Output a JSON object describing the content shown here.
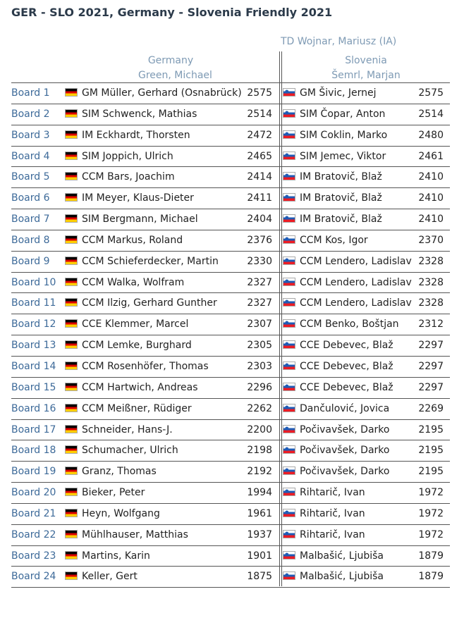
{
  "title": "GER - SLO 2021, Germany - Slovenia Friendly 2021",
  "arbiter": "TD Wojnar, Mariusz (IA)",
  "teams": {
    "left": {
      "name": "Germany",
      "captain": "Green, Michael",
      "flag": "germany-flag"
    },
    "right": {
      "name": "Slovenia",
      "captain": "Šemrl, Marjan",
      "flag": "slovenia-flag"
    }
  },
  "boards": [
    {
      "board": "Board 1",
      "left": "GM Müller, Gerhard (Osnabrück)",
      "left_rating": "2575",
      "right": "GM Šivic, Jernej",
      "right_rating": "2575"
    },
    {
      "board": "Board 2",
      "left": "SIM Schwenck, Mathias",
      "left_rating": "2514",
      "right": "SIM Čopar, Anton",
      "right_rating": "2514"
    },
    {
      "board": "Board 3",
      "left": "IM Eckhardt, Thorsten",
      "left_rating": "2472",
      "right": "SIM Coklin, Marko",
      "right_rating": "2480"
    },
    {
      "board": "Board 4",
      "left": "SIM Joppich, Ulrich",
      "left_rating": "2465",
      "right": "SIM Jemec, Viktor",
      "right_rating": "2461"
    },
    {
      "board": "Board 5",
      "left": "CCM Bars, Joachim",
      "left_rating": "2414",
      "right": "IM Bratovič, Blaž",
      "right_rating": "2410"
    },
    {
      "board": "Board 6",
      "left": "IM Meyer, Klaus-Dieter",
      "left_rating": "2411",
      "right": "IM Bratovič, Blaž",
      "right_rating": "2410"
    },
    {
      "board": "Board 7",
      "left": "SIM Bergmann, Michael",
      "left_rating": "2404",
      "right": "IM Bratovič, Blaž",
      "right_rating": "2410"
    },
    {
      "board": "Board 8",
      "left": "CCM Markus, Roland",
      "left_rating": "2376",
      "right": "CCM Kos, Igor",
      "right_rating": "2370"
    },
    {
      "board": "Board 9",
      "left": "CCM Schieferdecker, Martin",
      "left_rating": "2330",
      "right": "CCM Lendero, Ladislav",
      "right_rating": "2328"
    },
    {
      "board": "Board 10",
      "left": "CCM Walka, Wolfram",
      "left_rating": "2327",
      "right": "CCM Lendero, Ladislav",
      "right_rating": "2328"
    },
    {
      "board": "Board 11",
      "left": "CCM Ilzig, Gerhard Gunther",
      "left_rating": "2327",
      "right": "CCM Lendero, Ladislav",
      "right_rating": "2328"
    },
    {
      "board": "Board 12",
      "left": "CCE Klemmer, Marcel",
      "left_rating": "2307",
      "right": "CCM Benko, Boštjan",
      "right_rating": "2312"
    },
    {
      "board": "Board 13",
      "left": "CCM Lemke, Burghard",
      "left_rating": "2305",
      "right": "CCE Debevec, Blaž",
      "right_rating": "2297"
    },
    {
      "board": "Board 14",
      "left": "CCM Rosenhöfer, Thomas",
      "left_rating": "2303",
      "right": "CCE Debevec, Blaž",
      "right_rating": "2297"
    },
    {
      "board": "Board 15",
      "left": "CCM Hartwich, Andreas",
      "left_rating": "2296",
      "right": "CCE Debevec, Blaž",
      "right_rating": "2297"
    },
    {
      "board": "Board 16",
      "left": "CCM Meißner, Rüdiger",
      "left_rating": "2262",
      "right": "Dančulović, Jovica",
      "right_rating": "2269"
    },
    {
      "board": "Board 17",
      "left": "Schneider, Hans-J.",
      "left_rating": "2200",
      "right": "Počivavšek, Darko",
      "right_rating": "2195"
    },
    {
      "board": "Board 18",
      "left": "Schumacher, Ulrich",
      "left_rating": "2198",
      "right": "Počivavšek, Darko",
      "right_rating": "2195"
    },
    {
      "board": "Board 19",
      "left": "Granz, Thomas",
      "left_rating": "2192",
      "right": "Počivavšek, Darko",
      "right_rating": "2195"
    },
    {
      "board": "Board 20",
      "left": "Bieker, Peter",
      "left_rating": "1994",
      "right": "Rihtarič, Ivan",
      "right_rating": "1972"
    },
    {
      "board": "Board 21",
      "left": "Heyn, Wolfgang",
      "left_rating": "1961",
      "right": "Rihtarič, Ivan",
      "right_rating": "1972"
    },
    {
      "board": "Board 22",
      "left": "Mühlhauser, Matthias",
      "left_rating": "1937",
      "right": "Rihtarič, Ivan",
      "right_rating": "1972"
    },
    {
      "board": "Board 23",
      "left": "Martins, Karin",
      "left_rating": "1901",
      "right": "Malbašić, Ljubiša",
      "right_rating": "1879"
    },
    {
      "board": "Board 24",
      "left": "Keller, Gert",
      "left_rating": "1875",
      "right": "Malbašić, Ljubiša",
      "right_rating": "1879"
    }
  ],
  "colors": {
    "title": "#2b3a4a",
    "header": "#7e9ab4",
    "board_label": "#3d6a99",
    "rule": "#555555"
  }
}
